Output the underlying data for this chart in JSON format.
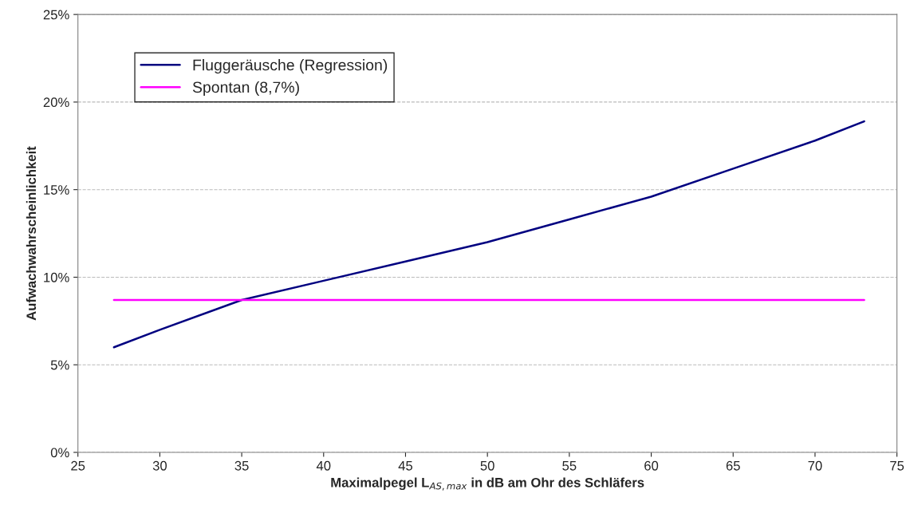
{
  "chart_data": {
    "type": "line",
    "xlabel": "Maximalpegel L$_{AS,max}$ in dB am Ohr des Schläfers",
    "ylabel": "Aufwachwahrscheinlichkeit",
    "series": [
      {
        "name": "Fluggeräusche (Regression)",
        "color": "#000080",
        "x": [
          27.2,
          30,
          35,
          40,
          45,
          50,
          55,
          60,
          65,
          70,
          73
        ],
        "values": [
          6.0,
          7.0,
          8.7,
          9.8,
          10.9,
          12.0,
          13.3,
          14.6,
          16.2,
          17.8,
          18.9
        ]
      },
      {
        "name": "Spontan (8,7%)",
        "color": "#ff00ff",
        "x": [
          27.2,
          73
        ],
        "values": [
          8.7,
          8.7
        ]
      }
    ],
    "xlim": [
      25,
      75
    ],
    "xticks": [
      25,
      30,
      35,
      40,
      45,
      50,
      55,
      60,
      65,
      70,
      75
    ],
    "ylim": [
      0,
      25
    ],
    "yticks": [
      {
        "value": 0,
        "label": "0%"
      },
      {
        "value": 5,
        "label": "5%"
      },
      {
        "value": 10,
        "label": "10%"
      },
      {
        "value": 15,
        "label": "15%"
      },
      {
        "value": 20,
        "label": "20%"
      },
      {
        "value": 25,
        "label": "25%"
      }
    ],
    "grid": "y",
    "legend": "top left",
    "line_style": "solid",
    "marker": "none"
  }
}
